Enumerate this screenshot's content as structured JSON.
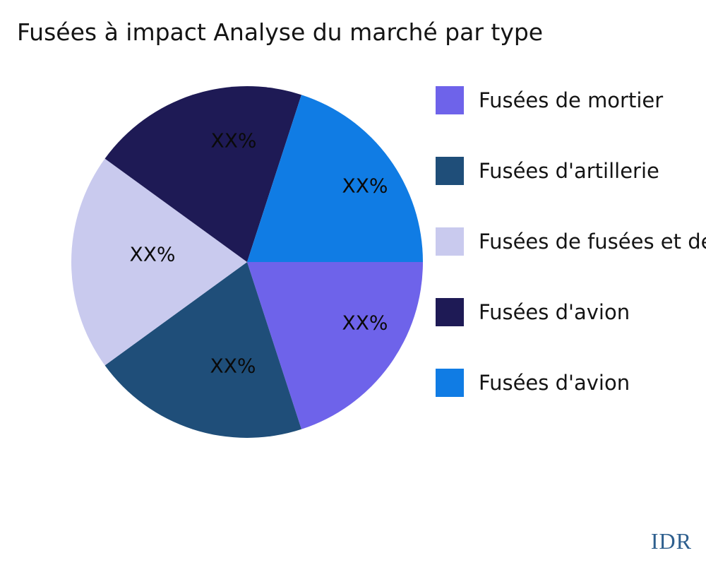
{
  "watermark": {
    "text": "IDR",
    "color": "#2E5F8E"
  },
  "chart_data": {
    "type": "pie",
    "title": "Fusées à impact Analyse du marché par type",
    "legend_position": "right",
    "direction": "clockwise",
    "start_angle_deg": 0,
    "value_labels": "placeholder_percent",
    "slices": [
      {
        "label": "Fusées de mortier",
        "value": 20,
        "display_pct": "XX%",
        "color": "#6E63EA"
      },
      {
        "label": "Fusées d'artillerie",
        "value": 20,
        "display_pct": "XX%",
        "color": "#1F4E79"
      },
      {
        "label": "Fusées de fusées et de",
        "value": 20,
        "display_pct": "XX%",
        "color": "#C9CAEE"
      },
      {
        "label": "Fusées d'avion",
        "value": 20,
        "display_pct": "XX%",
        "color": "#1E1A55"
      },
      {
        "label": "Fusées d'avion",
        "value": 20,
        "display_pct": "XX%",
        "color": "#107CE4"
      }
    ]
  }
}
